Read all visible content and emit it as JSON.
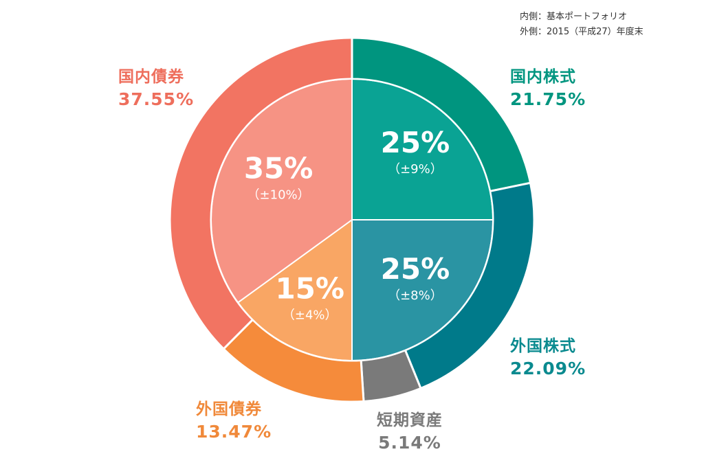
{
  "legend": {
    "inner": "内側：基本ポートフォリオ",
    "outer": "外側：2015（平成27）年度末"
  },
  "chart_data": [
    {
      "type": "pie",
      "ring": "inner",
      "legend": "内側：基本ポートフォリオ",
      "slices": [
        {
          "category": "国内株式",
          "value": 25,
          "label": "25%",
          "range": "（±9%）",
          "color": "#0aa394"
        },
        {
          "category": "外国株式",
          "value": 25,
          "label": "25%",
          "range": "（±8%）",
          "color": "#2a94a3"
        },
        {
          "category": "外国債券",
          "value": 15,
          "label": "15%",
          "range": "（±4%）",
          "color": "#f9a664"
        },
        {
          "category": "国内債券",
          "value": 35,
          "label": "35%",
          "range": "（±10%）",
          "color": "#f69384"
        }
      ]
    },
    {
      "type": "pie",
      "ring": "outer",
      "legend": "外側：2015（平成27）年度末",
      "slices": [
        {
          "category": "国内株式",
          "value": 21.75,
          "label": "21.75%",
          "color": "#00957f",
          "text_color": "#00957f"
        },
        {
          "category": "外国株式",
          "value": 22.09,
          "label": "22.09%",
          "color": "#007a8a",
          "text_color": "#0a8a8f"
        },
        {
          "category": "短期資産",
          "value": 5.14,
          "label": "5.14%",
          "color": "#7a7a7a",
          "text_color": "#7a7a7a"
        },
        {
          "category": "外国債券",
          "value": 13.47,
          "label": "13.47%",
          "color": "#f58b3b",
          "text_color": "#f0893a"
        },
        {
          "category": "国内債券",
          "value": 37.55,
          "label": "37.55%",
          "color": "#f27462",
          "text_color": "#ee6e5c"
        }
      ]
    }
  ]
}
